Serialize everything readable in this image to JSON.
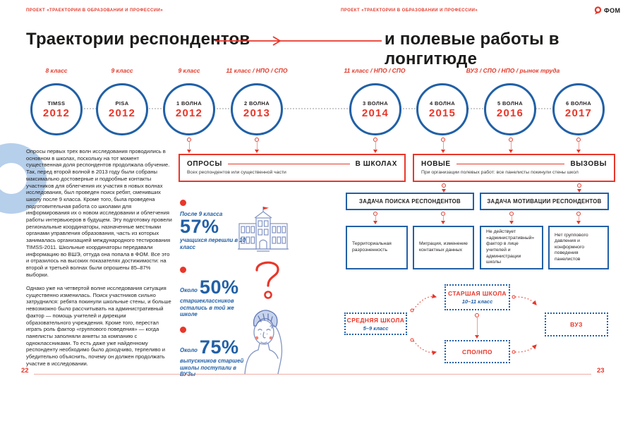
{
  "page": {
    "running_head_left": "ПРОЕКТ «ТРАЕКТОРИИ В ОБРАЗОВАНИИ И ПРОФЕССИИ»",
    "running_head_right": "ПРОЕКТ «ТРАЕКТОРИИ В ОБРАЗОВАНИИ И ПРОФЕССИИ»",
    "logo_text": "ФОМ",
    "page_left": "22",
    "page_right": "23"
  },
  "title": {
    "left": "Траектории респондентов",
    "right": "и полевые работы в лонгитюде"
  },
  "timeline": {
    "grade_labels": [
      "8 класс",
      "9 класс",
      "9 класс",
      "11 класс / НПО / СПО",
      "11 класс / НПО / СПО",
      "ВУЗ / СПО / НПО / рынок труда"
    ],
    "nodes": [
      {
        "name": "TIMSS",
        "year": "2012"
      },
      {
        "name": "PISA",
        "year": "2012"
      },
      {
        "name": "1 ВОЛНА",
        "year": "2012"
      },
      {
        "name": "2 ВОЛНА",
        "year": "2013"
      },
      {
        "name": "3 ВОЛНА",
        "year": "2014"
      },
      {
        "name": "4 ВОЛНА",
        "year": "2015"
      },
      {
        "name": "5 ВОЛНА",
        "year": "2016"
      },
      {
        "name": "6 ВОЛНА",
        "year": "2017"
      }
    ]
  },
  "body_text": {
    "paragraph_1": "Опросы первых трех волн исследования проводились в основном в школах, поскольку на тот момент существенная доля респондентов продолжала обучение. Так, перед второй волной в 2013 году были собраны максимально достоверные и подробные контакты участников для облегчения их участия в новых волнах исследования, был проведен поиск ребят, сменивших школу после 9 класса. Кроме того, была проведена подготовительная работа со школами для информирования их о новом исследовании и облегчения работы интервьюеров в будущем. Эту подготовку провели региональные координаторы, назначенные местными органами управления образования, часть из которых занималась организацией международного тестирования TIMSS-2011. Школьные координаторы передавали информацию во ВШЭ, оттуда она попала в ФОМ. Все это и отразилось на высоких показателях достижимости: на второй и третьей волнах были опрошены 85–87% выборки.",
    "paragraph_2": "Однако уже на четвертой волне исследования ситуация существенно изменилась. Поиск участников сильно затруднился: ребята покинули школьные стены, и больше невозможно было рассчитывать на административный фактор — помощь учителей и дирекции образовательного учреждения. Кроме того, перестал играть роль фактор «группового поведения» — когда панелисты заполняли анкеты за компанию с одноклассниками. То есть даже уже найденному респонденту необходимо было доходчиво, терпеливо и убедительно объяснить, почему он должен продолжать участие в исследовании."
  },
  "stats": [
    {
      "prefix": "После 9 класса",
      "value": "57%",
      "caption": "учащихся перешли в 10 класс"
    },
    {
      "prefix": "Около",
      "value": "50%",
      "caption": "старшеклассников остались в той же школе"
    },
    {
      "prefix": "Около",
      "value": "75%",
      "caption": "выпускников старшей школы поступали в ВУЗы"
    }
  ],
  "callouts": {
    "surveys": {
      "title_left": "ОПРОСЫ",
      "title_right": "В ШКОЛАХ",
      "subtitle": "Всех респондентов или существенной части"
    },
    "challenges": {
      "title_left": "НОВЫЕ",
      "title_right": "ВЫЗОВЫ",
      "subtitle": "При организации полевых работ: все панелисты покинули стены школ"
    },
    "task_search": {
      "title": "ЗАДАЧА ПОИСКА РЕСПОНДЕНТОВ",
      "items": [
        "Территориальная разрозненность",
        "Миграция, изменение контактных данных"
      ]
    },
    "task_motivation": {
      "title": "ЗАДАЧА МОТИВАЦИИ РЕСПОНДЕНТОВ",
      "items": [
        "Не действует «административный» фактор в лице учителей и администрации школы",
        "Нет группового давления и конформного поведения панелистов"
      ]
    }
  },
  "flow": {
    "middle_school": {
      "title": "СРЕДНЯЯ ШКОЛА",
      "subtitle": "5–9 класс"
    },
    "high_school": {
      "title": "СТАРШАЯ ШКОЛА",
      "subtitle": "10–11 класс"
    },
    "vocational": {
      "title": "СПО/НПО"
    },
    "university": {
      "title": "ВУЗ"
    }
  },
  "colors": {
    "accent_red": "#e8372a",
    "brand_blue": "#2160a6",
    "sketch_blue": "#8194c4",
    "watermark_blue": "#b6cfeb"
  }
}
